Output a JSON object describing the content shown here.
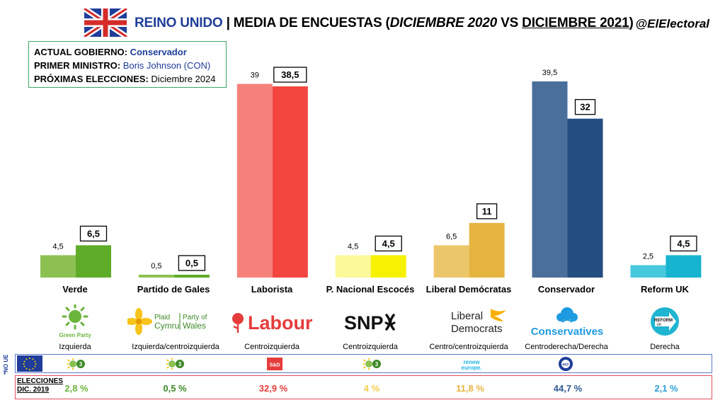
{
  "header": {
    "country": "REINO UNIDO",
    "separator": "|",
    "title_prefix": "MEDIA DE ENCUESTAS (",
    "date_2020": "DICIEMBRE 2020",
    "vs": "VS",
    "date_2021": "DICIEMBRE 2021",
    "title_suffix": ")",
    "handle": "@ElElectoral"
  },
  "info": {
    "gov_label": "ACTUAL GOBIERNO:",
    "gov_value": "Conservador",
    "pm_label": "PRIMER MINISTRO:",
    "pm_value": "Boris Johnson (CON)",
    "next_label": "PRÓXIMAS ELECCIONES:",
    "next_value": "Diciembre 2024"
  },
  "chart_data": {
    "type": "bar",
    "categories": [
      "Verde",
      "Partido de Gales",
      "Laborista",
      "P. Nacional Escocés",
      "Liberal Demócratas",
      "Conservador",
      "Reform UK"
    ],
    "series": [
      {
        "name": "DICIEMBRE 2020",
        "values": [
          4.5,
          0.5,
          39,
          4.5,
          6.5,
          39.5,
          2.5
        ],
        "labels": [
          "4,5",
          "0,5",
          "39",
          "4,5",
          "6,5",
          "39,5",
          "2,5"
        ]
      },
      {
        "name": "DICIEMBRE 2021",
        "values": [
          6.5,
          0.5,
          38.5,
          4.5,
          11,
          32,
          4.5
        ],
        "labels": [
          "6,5",
          "0,5",
          "38,5",
          "4,5",
          "11",
          "32",
          "4,5"
        ]
      }
    ],
    "ylim": [
      0,
      42
    ],
    "colors_2020": [
      "#8cc152",
      "#8cc152",
      "#f5817a",
      "#fbf99a",
      "#ecc66a",
      "#4a6f9b",
      "#48c8dc"
    ],
    "colors_2021": [
      "#5eac28",
      "#5eac28",
      "#f2463f",
      "#f7f200",
      "#e6b441",
      "#234e82",
      "#16b4cf"
    ]
  },
  "parties": [
    {
      "name": "Verde",
      "ideology": "Izquierda",
      "logo_text": "Green Party",
      "eu_group": "greens",
      "election_2019": "2,8 %",
      "color": "#6ab43c"
    },
    {
      "name": "Partido de Gales",
      "ideology": "Izquierda/centroizquierda",
      "logo_text": "Plaid Cymru | Party of Wales",
      "logo_text_a": "Plaid",
      "logo_text_b": "Cymru",
      "logo_text_c": "Party of",
      "logo_text_d": "Wales",
      "eu_group": "greens",
      "election_2019": "0,5 %",
      "color": "#3c8a28"
    },
    {
      "name": "Laborista",
      "ideology": "Centroizquierda",
      "logo_text": "Labour",
      "eu_group": "S&D",
      "election_2019": "32,9 %",
      "color": "#e63c3c"
    },
    {
      "name": "P. Nacional Escocés",
      "ideology": "Centroizquierda",
      "logo_text": "SNP",
      "eu_group": "greens",
      "election_2019": "4 %",
      "color": "#f0cf4f"
    },
    {
      "name": "Liberal Demócratas",
      "ideology": "Centro/centroizquierda",
      "logo_text_a": "Liberal",
      "logo_text_b": "Democrats",
      "eu_group": "renew europe.",
      "election_2019": "11,8 %",
      "color": "#e8b441"
    },
    {
      "name": "Conservador",
      "ideology": "Centroderecha/Derecha",
      "logo_text": "Conservatives",
      "eu_group": "ecr",
      "election_2019": "44,7 %",
      "color": "#2d5c96"
    },
    {
      "name": "Reform UK",
      "ideology": "Derecha",
      "logo_text_a": "REFORM",
      "logo_text_b": "UK",
      "eu_group": "",
      "election_2019": "2,1 %",
      "color": "#2aa0d8"
    }
  ],
  "eu_side_label": "*NO UE",
  "elections_label": "ELECCIONES",
  "elections_label_2": "DIC. 2019"
}
